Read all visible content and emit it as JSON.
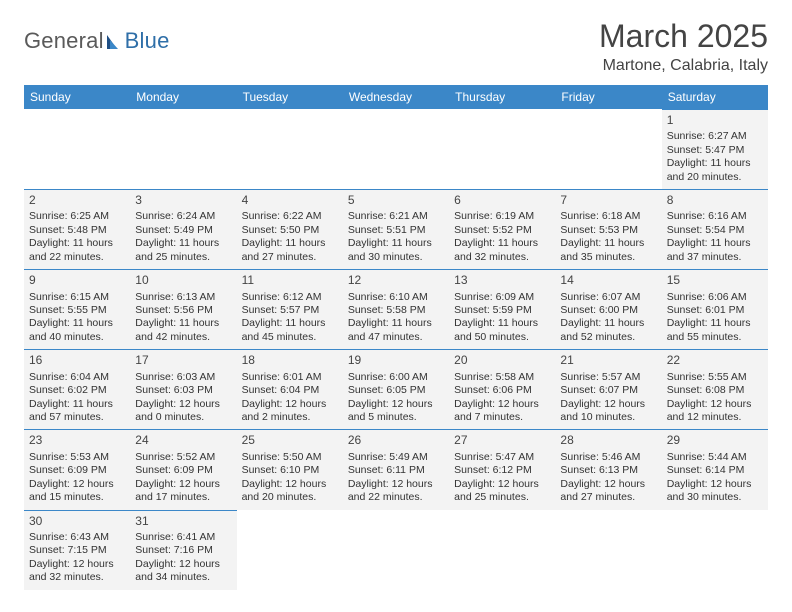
{
  "logo": {
    "text1": "General",
    "text2": "Blue"
  },
  "header": {
    "title": "March 2025",
    "location": "Martone, Calabria, Italy"
  },
  "colors": {
    "header_bg": "#3b87c8",
    "header_text": "#ffffff",
    "cell_bg": "#f3f3f3",
    "cell_border": "#3b87c8",
    "text": "#333333",
    "logo_gray": "#5a5a5a",
    "logo_blue": "#2f6fa8"
  },
  "dayNames": [
    "Sunday",
    "Monday",
    "Tuesday",
    "Wednesday",
    "Thursday",
    "Friday",
    "Saturday"
  ],
  "weeks": [
    [
      {
        "blank": true
      },
      {
        "blank": true
      },
      {
        "blank": true
      },
      {
        "blank": true
      },
      {
        "blank": true
      },
      {
        "blank": true
      },
      {
        "n": "1",
        "sr": "6:27 AM",
        "ss": "5:47 PM",
        "dl": "11 hours and 20 minutes."
      }
    ],
    [
      {
        "n": "2",
        "sr": "6:25 AM",
        "ss": "5:48 PM",
        "dl": "11 hours and 22 minutes."
      },
      {
        "n": "3",
        "sr": "6:24 AM",
        "ss": "5:49 PM",
        "dl": "11 hours and 25 minutes."
      },
      {
        "n": "4",
        "sr": "6:22 AM",
        "ss": "5:50 PM",
        "dl": "11 hours and 27 minutes."
      },
      {
        "n": "5",
        "sr": "6:21 AM",
        "ss": "5:51 PM",
        "dl": "11 hours and 30 minutes."
      },
      {
        "n": "6",
        "sr": "6:19 AM",
        "ss": "5:52 PM",
        "dl": "11 hours and 32 minutes."
      },
      {
        "n": "7",
        "sr": "6:18 AM",
        "ss": "5:53 PM",
        "dl": "11 hours and 35 minutes."
      },
      {
        "n": "8",
        "sr": "6:16 AM",
        "ss": "5:54 PM",
        "dl": "11 hours and 37 minutes."
      }
    ],
    [
      {
        "n": "9",
        "sr": "6:15 AM",
        "ss": "5:55 PM",
        "dl": "11 hours and 40 minutes."
      },
      {
        "n": "10",
        "sr": "6:13 AM",
        "ss": "5:56 PM",
        "dl": "11 hours and 42 minutes."
      },
      {
        "n": "11",
        "sr": "6:12 AM",
        "ss": "5:57 PM",
        "dl": "11 hours and 45 minutes."
      },
      {
        "n": "12",
        "sr": "6:10 AM",
        "ss": "5:58 PM",
        "dl": "11 hours and 47 minutes."
      },
      {
        "n": "13",
        "sr": "6:09 AM",
        "ss": "5:59 PM",
        "dl": "11 hours and 50 minutes."
      },
      {
        "n": "14",
        "sr": "6:07 AM",
        "ss": "6:00 PM",
        "dl": "11 hours and 52 minutes."
      },
      {
        "n": "15",
        "sr": "6:06 AM",
        "ss": "6:01 PM",
        "dl": "11 hours and 55 minutes."
      }
    ],
    [
      {
        "n": "16",
        "sr": "6:04 AM",
        "ss": "6:02 PM",
        "dl": "11 hours and 57 minutes."
      },
      {
        "n": "17",
        "sr": "6:03 AM",
        "ss": "6:03 PM",
        "dl": "12 hours and 0 minutes."
      },
      {
        "n": "18",
        "sr": "6:01 AM",
        "ss": "6:04 PM",
        "dl": "12 hours and 2 minutes."
      },
      {
        "n": "19",
        "sr": "6:00 AM",
        "ss": "6:05 PM",
        "dl": "12 hours and 5 minutes."
      },
      {
        "n": "20",
        "sr": "5:58 AM",
        "ss": "6:06 PM",
        "dl": "12 hours and 7 minutes."
      },
      {
        "n": "21",
        "sr": "5:57 AM",
        "ss": "6:07 PM",
        "dl": "12 hours and 10 minutes."
      },
      {
        "n": "22",
        "sr": "5:55 AM",
        "ss": "6:08 PM",
        "dl": "12 hours and 12 minutes."
      }
    ],
    [
      {
        "n": "23",
        "sr": "5:53 AM",
        "ss": "6:09 PM",
        "dl": "12 hours and 15 minutes."
      },
      {
        "n": "24",
        "sr": "5:52 AM",
        "ss": "6:09 PM",
        "dl": "12 hours and 17 minutes."
      },
      {
        "n": "25",
        "sr": "5:50 AM",
        "ss": "6:10 PM",
        "dl": "12 hours and 20 minutes."
      },
      {
        "n": "26",
        "sr": "5:49 AM",
        "ss": "6:11 PM",
        "dl": "12 hours and 22 minutes."
      },
      {
        "n": "27",
        "sr": "5:47 AM",
        "ss": "6:12 PM",
        "dl": "12 hours and 25 minutes."
      },
      {
        "n": "28",
        "sr": "5:46 AM",
        "ss": "6:13 PM",
        "dl": "12 hours and 27 minutes."
      },
      {
        "n": "29",
        "sr": "5:44 AM",
        "ss": "6:14 PM",
        "dl": "12 hours and 30 minutes."
      }
    ],
    [
      {
        "n": "30",
        "sr": "6:43 AM",
        "ss": "7:15 PM",
        "dl": "12 hours and 32 minutes."
      },
      {
        "n": "31",
        "sr": "6:41 AM",
        "ss": "7:16 PM",
        "dl": "12 hours and 34 minutes."
      },
      {
        "blank": true
      },
      {
        "blank": true
      },
      {
        "blank": true
      },
      {
        "blank": true
      },
      {
        "blank": true
      }
    ]
  ],
  "labels": {
    "sunrise": "Sunrise:",
    "sunset": "Sunset:",
    "daylight": "Daylight:"
  }
}
